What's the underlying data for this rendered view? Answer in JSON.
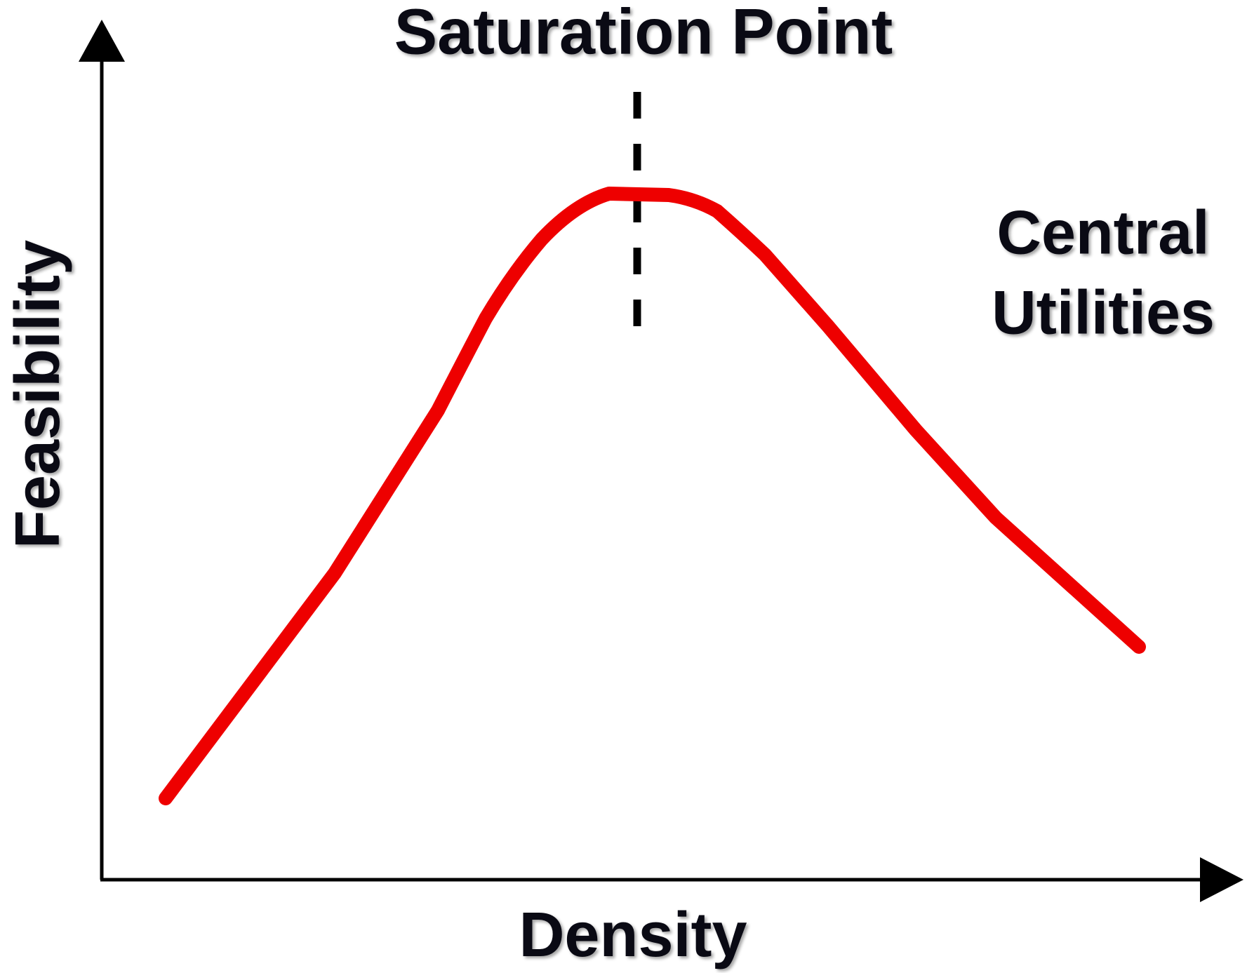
{
  "title": "Saturation Point",
  "annotation": {
    "lines": [
      "Central",
      "Utilities"
    ]
  },
  "x_axis_label": "Density",
  "y_axis_label": "Feasibility"
}
